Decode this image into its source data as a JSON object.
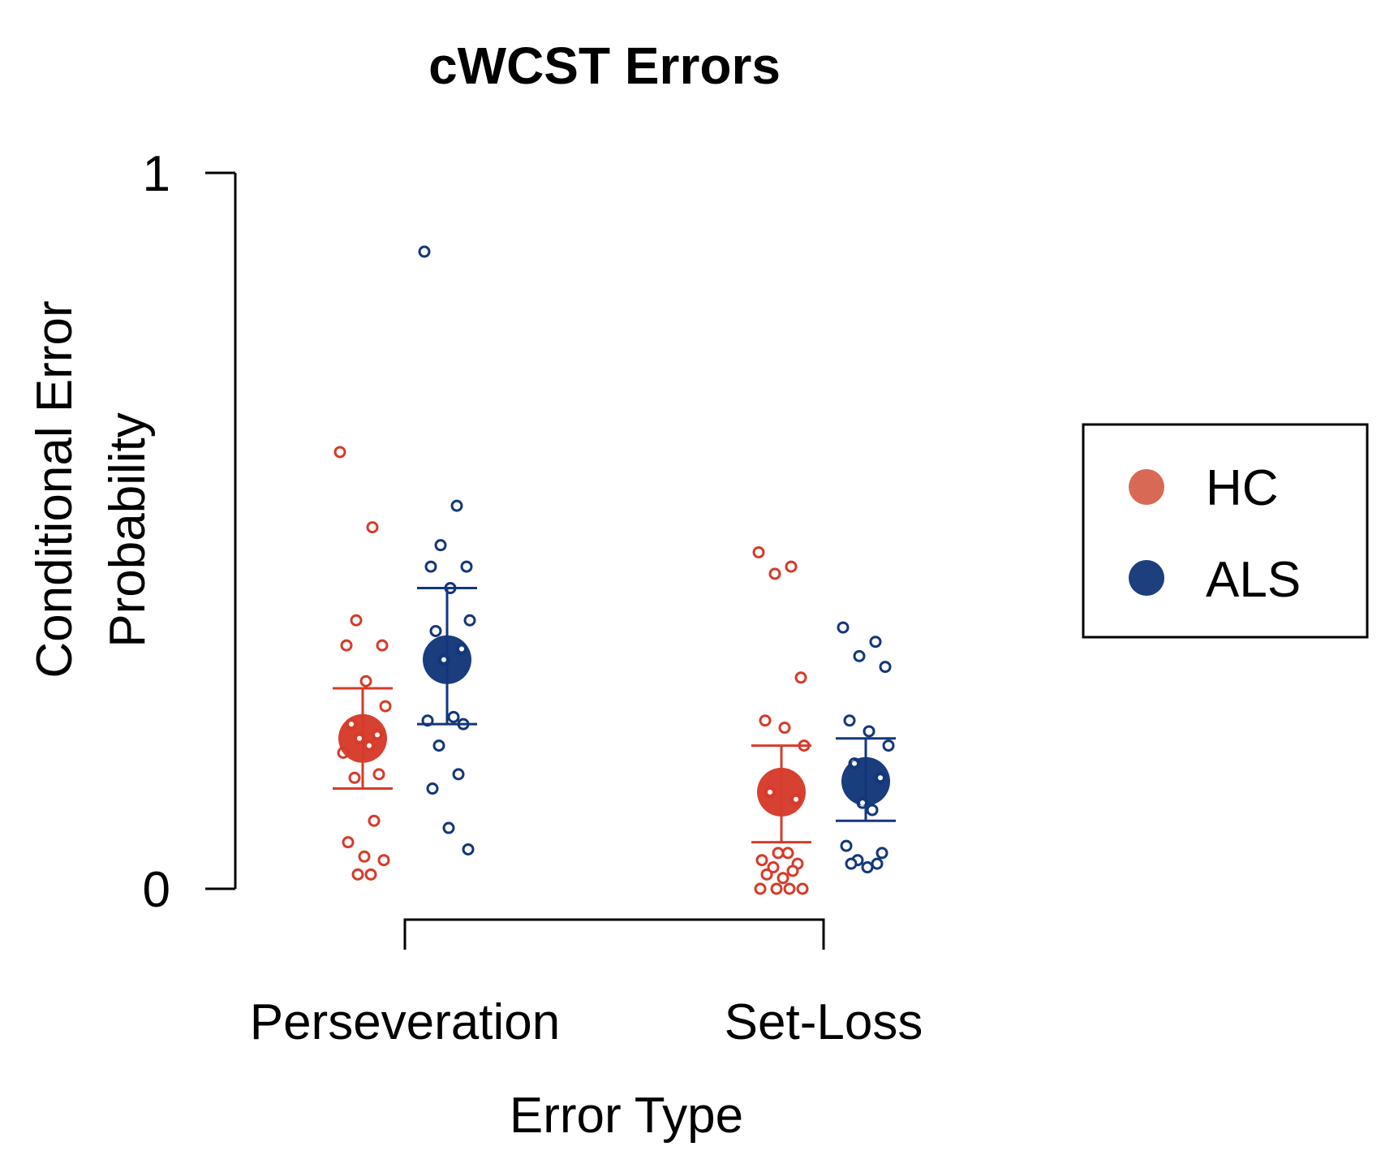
{
  "chart_data": {
    "type": "scatter",
    "title": "cWCST Errors",
    "xlabel": "Error Type",
    "ylabel": [
      "Conditional Error",
      "Probability"
    ],
    "ylim": [
      0,
      1
    ],
    "yticks": [
      0,
      1
    ],
    "categories": [
      "Perseveration",
      "Set-Loss"
    ],
    "legend_position": "right",
    "series": [
      {
        "name": "HC",
        "color": "#d63b2a",
        "legend_color": "#d86a55",
        "mean": [
          0.21,
          0.135
        ],
        "error_low": [
          0.14,
          0.065
        ],
        "error_high": [
          0.28,
          0.2
        ],
        "points": [
          [
            0.61,
            0.505,
            0.375,
            0.34,
            0.34,
            0.29,
            0.255,
            0.23,
            0.215,
            0.21,
            0.2,
            0.19,
            0.16,
            0.155,
            0.095,
            0.065,
            0.045,
            0.04,
            0.02,
            0.02
          ],
          [
            0.47,
            0.45,
            0.44,
            0.295,
            0.235,
            0.225,
            0.2,
            0.135,
            0.125,
            0.05,
            0.05,
            0.04,
            0.035,
            0.03,
            0.025,
            0.02,
            0.015,
            0.0,
            0.0,
            0.0,
            0.0
          ]
        ]
      },
      {
        "name": "ALS",
        "color": "#13377a",
        "legend_color": "#1d3f7e",
        "mean": [
          0.32,
          0.15
        ],
        "error_low": [
          0.23,
          0.095
        ],
        "error_high": [
          0.42,
          0.21
        ],
        "points": [
          [
            0.89,
            0.535,
            0.48,
            0.45,
            0.45,
            0.42,
            0.375,
            0.36,
            0.335,
            0.32,
            0.24,
            0.235,
            0.23,
            0.2,
            0.16,
            0.14,
            0.085,
            0.055
          ],
          [
            0.365,
            0.345,
            0.325,
            0.31,
            0.235,
            0.22,
            0.2,
            0.175,
            0.155,
            0.12,
            0.11,
            0.06,
            0.05,
            0.04,
            0.035,
            0.035,
            0.03
          ]
        ]
      }
    ]
  }
}
